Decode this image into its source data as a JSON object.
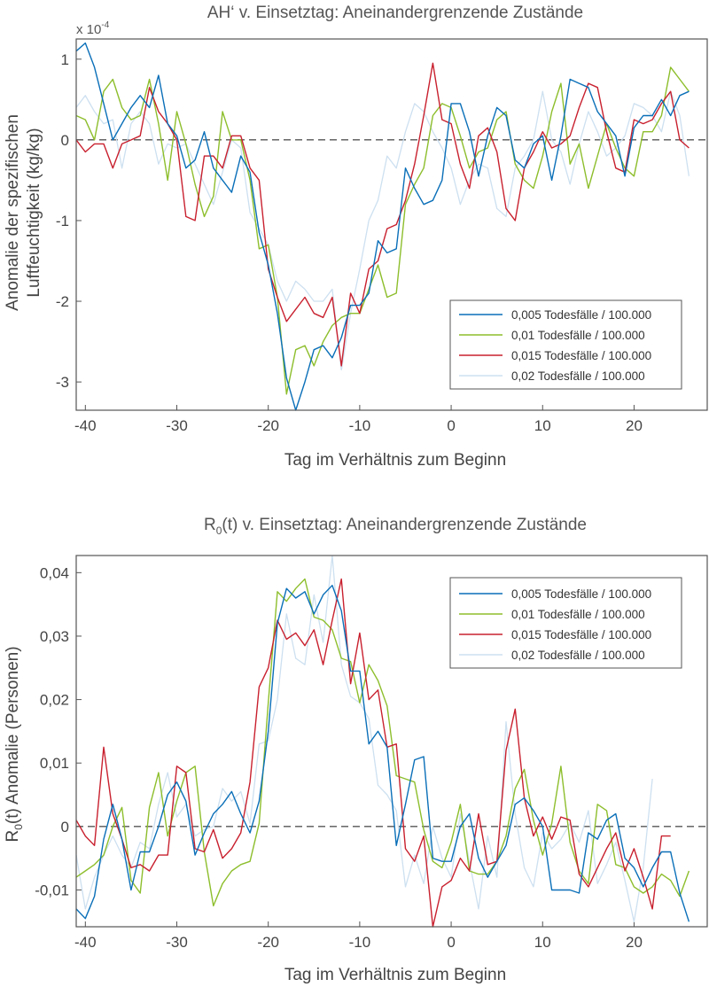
{
  "colors": {
    "series": [
      "#0a6fb8",
      "#8dbe2c",
      "#c8202e",
      "#cde0f0"
    ],
    "axis": "#555555",
    "zero_line": "#555555",
    "background": "#ffffff"
  },
  "chart_data": [
    {
      "type": "line",
      "title": "AH‘ v. Einsetztag: Aneinandergrenzende Zustände",
      "xlabel": "Tag im Verhältnis zum Beginn",
      "ylabel_line1": "Anomalie der spezifischen",
      "ylabel_line2": "Luftfeuchtigkeit (kg/kg)",
      "multiplier_base": "x 10",
      "multiplier_exp": "-4",
      "xlim": [
        -41,
        28
      ],
      "ylim": [
        -3.35,
        1.25
      ],
      "xticks": [
        -40,
        -30,
        -20,
        -10,
        0,
        10,
        20
      ],
      "xtick_labels": [
        "-40",
        "-30",
        "-20",
        "-10",
        "0",
        "10",
        "20"
      ],
      "yticks": [
        1,
        0,
        -1,
        -2,
        -3
      ],
      "ytick_labels": [
        "1",
        "0",
        "-1",
        "-2",
        "-3"
      ],
      "zero_line": "dashed",
      "grid": false,
      "legend_position": "lower-right",
      "x_start": -41,
      "series": [
        {
          "name": "0,005 Todesfälle / 100.000",
          "values": [
            1.1,
            1.2,
            0.9,
            0.45,
            0.0,
            0.2,
            0.4,
            0.55,
            0.4,
            0.8,
            0.2,
            0.05,
            -0.35,
            -0.25,
            0.1,
            -0.35,
            -0.5,
            -0.65,
            -0.2,
            -0.4,
            -1.15,
            -1.55,
            -2.15,
            -2.95,
            -3.35,
            -3.0,
            -2.6,
            -2.55,
            -2.7,
            -2.45,
            -2.05,
            -2.05,
            -1.9,
            -1.25,
            -1.4,
            -1.35,
            -0.35,
            -0.6,
            -0.8,
            -0.75,
            -0.5,
            0.45,
            0.45,
            0.1,
            -0.45,
            0.05,
            0.4,
            0.3,
            -0.25,
            -0.35,
            -0.05,
            0.05,
            -0.5,
            0.05,
            0.75,
            0.7,
            0.65,
            0.35,
            0.2,
            0.05,
            -0.45,
            0.15,
            0.3,
            0.3,
            0.5,
            0.3,
            0.55,
            0.6
          ]
        },
        {
          "name": "0,01 Todesfälle / 100.000",
          "values": [
            0.3,
            0.25,
            0.0,
            0.6,
            0.75,
            0.4,
            0.25,
            0.3,
            0.75,
            0.2,
            -0.5,
            0.35,
            -0.05,
            -0.55,
            -0.95,
            -0.7,
            0.35,
            0.0,
            0.0,
            -0.5,
            -1.35,
            -1.3,
            -1.95,
            -3.15,
            -2.6,
            -2.55,
            -2.8,
            -2.5,
            -2.3,
            -2.2,
            -2.15,
            -2.15,
            -1.85,
            -1.55,
            -1.95,
            -1.9,
            -0.8,
            -0.55,
            -0.35,
            0.3,
            0.45,
            0.4,
            0.05,
            -0.35,
            -0.15,
            -0.1,
            0.25,
            0.35,
            -0.3,
            -0.5,
            -0.6,
            -0.2,
            0.35,
            0.7,
            -0.3,
            -0.05,
            -0.6,
            -0.2,
            0.2,
            -0.1,
            -0.35,
            -0.45,
            0.1,
            0.1,
            0.3,
            0.9,
            0.75,
            0.6
          ]
        },
        {
          "name": "0,015 Todesfälle / 100.000",
          "values": [
            0.0,
            -0.15,
            -0.05,
            -0.05,
            -0.35,
            -0.05,
            0.0,
            0.05,
            0.65,
            0.35,
            0.2,
            0.0,
            -0.95,
            -1.0,
            -0.2,
            -0.2,
            -0.35,
            0.05,
            0.05,
            -0.35,
            -0.5,
            -1.6,
            -1.95,
            -2.25,
            -2.1,
            -1.95,
            -2.15,
            -2.2,
            -1.95,
            -2.8,
            -1.9,
            -2.15,
            -1.6,
            -1.5,
            -1.1,
            -1.05,
            -0.75,
            -0.3,
            0.3,
            0.95,
            0.25,
            0.2,
            -0.3,
            -0.6,
            0.05,
            0.15,
            -0.15,
            -0.85,
            -1.0,
            -0.35,
            -0.15,
            0.1,
            -0.1,
            -0.05,
            0.05,
            0.4,
            0.7,
            0.65,
            0.1,
            -0.35,
            -0.4,
            0.25,
            0.2,
            0.25,
            0.45,
            0.6,
            0.0,
            -0.1
          ]
        },
        {
          "name": "0,02 Todesfälle / 100.000",
          "values": [
            0.4,
            0.55,
            0.35,
            0.2,
            0.25,
            -0.35,
            0.2,
            0.35,
            0.2,
            -0.3,
            -0.05,
            -0.1,
            -0.05,
            -0.3,
            -0.55,
            -0.8,
            -0.4,
            0.0,
            -0.1,
            -0.9,
            -1.1,
            -1.3,
            -1.75,
            -2.0,
            -1.75,
            -1.85,
            -2.0,
            -2.0,
            -1.85,
            -2.85,
            -2.15,
            -1.6,
            -1.0,
            -0.75,
            -0.2,
            -0.35,
            0.1,
            0.45,
            0.35,
            0.1,
            -0.1,
            -0.35,
            -0.8,
            -0.5,
            -0.3,
            -0.35,
            -0.85,
            -0.95,
            -0.35,
            -0.2,
            0.0,
            0.6,
            0.0,
            -0.15,
            -0.55,
            -0.05,
            0.35,
            0.1,
            -0.2,
            -0.1,
            0.05,
            0.45,
            0.4,
            0.3,
            0.1,
            0.6,
            0.3,
            -0.45
          ]
        }
      ]
    },
    {
      "type": "line",
      "title_main": "R",
      "title_sub": "0",
      "title_rest": "(t) v. Einsetztag: Aneinandergrenzende Zustände",
      "xlabel": "Tag im Verhältnis zum Beginn",
      "ylabel_main": "R",
      "ylabel_sub": "0",
      "ylabel_rest": "(t) Anomalie  (Personen)",
      "xlim": [
        -41,
        28
      ],
      "ylim": [
        -0.0158,
        0.0427
      ],
      "xticks": [
        -40,
        -30,
        -20,
        -10,
        0,
        10,
        20
      ],
      "xtick_labels": [
        "-40",
        "-30",
        "-20",
        "-10",
        "0",
        "10",
        "20"
      ],
      "yticks": [
        0.04,
        0.03,
        0.02,
        0.01,
        0,
        -0.01
      ],
      "ytick_labels": [
        "0,04",
        "0,03",
        "0,02",
        "0,01",
        "0",
        "-0,01"
      ],
      "zero_line": "dashed",
      "grid": false,
      "legend_position": "top-right",
      "x_start": -41,
      "series": [
        {
          "name": "0,005 Todesfälle / 100.000",
          "values": [
            -0.013,
            -0.0145,
            -0.011,
            -0.002,
            0.0035,
            -0.002,
            -0.01,
            -0.004,
            -0.004,
            0.0,
            0.005,
            0.007,
            0.004,
            -0.0045,
            -0.001,
            0.002,
            0.0035,
            0.0055,
            0.002,
            -0.001,
            0.004,
            0.015,
            0.032,
            0.0375,
            0.036,
            0.037,
            0.0335,
            0.0365,
            0.038,
            0.034,
            0.0245,
            0.0245,
            0.013,
            0.015,
            0.0125,
            -0.003,
            0.0035,
            0.0105,
            0.011,
            -0.005,
            -0.0055,
            -0.0055,
            0.0,
            0.002,
            -0.005,
            -0.008,
            -0.0055,
            -0.003,
            0.0035,
            0.0045,
            0.0025,
            0.0,
            -0.01,
            -0.01,
            -0.01,
            -0.0105,
            -0.001,
            -0.002,
            0.001,
            0.002,
            -0.005,
            -0.0065,
            -0.0095,
            -0.0065,
            -0.004,
            -0.004,
            -0.0105,
            -0.015
          ]
        },
        {
          "name": "0,01 Todesfälle / 100.000",
          "values": [
            -0.008,
            -0.007,
            -0.006,
            -0.0045,
            0.0,
            0.003,
            -0.0085,
            -0.0105,
            0.003,
            0.0085,
            -0.0015,
            0.004,
            0.0085,
            0.0095,
            -0.004,
            -0.0125,
            -0.009,
            -0.007,
            -0.006,
            -0.0055,
            0.0005,
            0.0195,
            0.037,
            0.0355,
            0.0375,
            0.039,
            0.033,
            0.0325,
            0.031,
            0.0265,
            0.026,
            0.0195,
            0.0255,
            0.023,
            0.019,
            0.008,
            0.0075,
            0.007,
            -0.0005,
            -0.0055,
            -0.0065,
            -0.0025,
            0.0035,
            -0.007,
            -0.0075,
            -0.0075,
            -0.0055,
            -0.0015,
            0.006,
            0.009,
            0.001,
            -0.0045,
            0.0005,
            0.0095,
            -0.0025,
            -0.007,
            -0.009,
            0.0035,
            0.0025,
            -0.006,
            -0.0065,
            -0.0095,
            -0.0105,
            -0.0095,
            -0.0075,
            -0.0085,
            -0.011,
            -0.007
          ]
        },
        {
          "name": "0,015 Todesfälle / 100.000",
          "values": [
            0.001,
            -0.0015,
            -0.003,
            0.0125,
            0.002,
            -0.002,
            -0.0065,
            -0.006,
            -0.007,
            -0.0045,
            -0.0045,
            0.0095,
            0.0085,
            -0.0035,
            -0.004,
            -0.0005,
            -0.005,
            -0.0035,
            -0.001,
            0.007,
            0.022,
            0.025,
            0.0325,
            0.0295,
            0.0305,
            0.0285,
            0.031,
            0.0255,
            0.0325,
            0.039,
            0.0225,
            0.0305,
            0.02,
            0.0215,
            0.0125,
            0.013,
            -0.0035,
            -0.0055,
            -0.0015,
            -0.016,
            -0.0095,
            -0.0085,
            -0.005,
            -0.007,
            0.002,
            -0.006,
            -0.0055,
            0.012,
            0.0185,
            0.0045,
            -0.0015,
            0.0015,
            -0.002,
            0.0015,
            0.001,
            -0.0075,
            -0.0095,
            -0.0065,
            -0.0035,
            -0.001,
            -0.007,
            -0.0035,
            -0.008,
            -0.013,
            -0.0015,
            -0.0015
          ]
        },
        {
          "name": "0,02 Todesfälle / 100.000",
          "values": [
            -0.0045,
            -0.013,
            -0.008,
            -0.0045,
            -0.0015,
            -0.0045,
            -0.0065,
            -0.0025,
            -0.0035,
            0.0035,
            0.0085,
            0.0015,
            0.0035,
            -0.0015,
            -0.0005,
            0.0,
            0.006,
            0.004,
            0.0055,
            0.0005,
            0.013,
            0.0135,
            0.02,
            0.0335,
            0.0265,
            0.0255,
            0.0365,
            0.029,
            0.043,
            0.0255,
            0.0205,
            0.0195,
            0.017,
            0.0065,
            0.005,
            0.0025,
            -0.0095,
            -0.0045,
            -0.009,
            0.0,
            -0.005,
            -0.008,
            0.002,
            -0.0055,
            -0.013,
            -0.0015,
            -0.008,
            0.0165,
            0.002,
            -0.0065,
            -0.0095,
            -0.001,
            -0.0035,
            -0.002,
            0.0005,
            -0.0025,
            0.0025,
            -0.009,
            -0.006,
            -0.0025,
            -0.0085,
            -0.015,
            -0.0065,
            0.0075
          ]
        }
      ]
    }
  ]
}
